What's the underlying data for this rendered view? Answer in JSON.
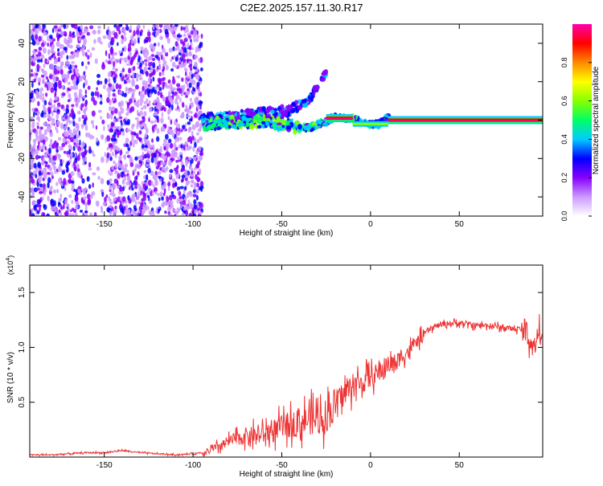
{
  "figure_title": "C2E2.2025.157.11.30.R17",
  "chart_data": [
    {
      "type": "heatmap",
      "xlabel": "Height of straight line (km)",
      "ylabel": "Frequency (Hz)",
      "xlim": [
        -192,
        97
      ],
      "ylim": [
        -50,
        50
      ],
      "x_ticks": [
        -150,
        -100,
        -50,
        0,
        50
      ],
      "y_ticks": [
        -40,
        -20,
        0,
        20,
        40
      ],
      "colorbar": {
        "label": "Normalized spectral amplitude",
        "range": [
          0,
          1
        ],
        "ticks": [
          0.0,
          0.2,
          0.4,
          0.6,
          0.8
        ],
        "colors": [
          "#ffffff",
          "#cc99ff",
          "#8800ff",
          "#0000ff",
          "#00ccff",
          "#00ff66",
          "#88ff00",
          "#ffff00",
          "#ff8800",
          "#ff0000",
          "#ff00aa"
        ]
      },
      "tracks": [
        {
          "segment": "noise",
          "x": [
            -192,
            -95
          ],
          "y": [
            -50,
            50
          ],
          "amplitude": 0.15
        },
        {
          "segment": "upper-branch",
          "x": [
            -95,
            -80,
            -60,
            -45,
            -35,
            -25
          ],
          "y": [
            0,
            1,
            3,
            5,
            10,
            25
          ],
          "amplitude": 0.3
        },
        {
          "segment": "main-branch",
          "x": [
            -95,
            -80,
            -60,
            -45,
            -35,
            -25,
            -20,
            -15,
            -10,
            -5,
            0,
            5,
            10
          ],
          "y": [
            -2,
            -1,
            -1,
            -3,
            -4,
            -1,
            2,
            1,
            1,
            -1,
            -2,
            -2,
            1
          ],
          "amplitude": 0.45
        },
        {
          "segment": "carrier",
          "x": [
            -25,
            -10
          ],
          "y": [
            1,
            1
          ],
          "amplitude": 0.95
        },
        {
          "segment": "carrier",
          "x": [
            10,
            97
          ],
          "y": [
            0,
            0
          ],
          "amplitude": 0.95
        }
      ]
    },
    {
      "type": "line",
      "xlabel": "Height of straight line (km)",
      "ylabel": "SNR (10 * v/v)",
      "y_multiplier": "(x10",
      "y_multiplier_exp": "4",
      "y_multiplier_close": ")",
      "xlim": [
        -192,
        97
      ],
      "ylim": [
        0,
        1.75
      ],
      "x_ticks": [
        -150,
        -100,
        -50,
        0,
        50
      ],
      "y_ticks": [
        0.5,
        1.0,
        1.5
      ],
      "y_tick_labels": [
        "0.5",
        "1.0",
        "1.5"
      ],
      "line_color": "#ee3333",
      "series": [
        {
          "x": [
            -192,
            -180,
            -170,
            -160,
            -150,
            -140,
            -130,
            -120,
            -110,
            -100,
            -95,
            -90,
            -85,
            -80,
            -75,
            -70,
            -65,
            -60,
            -55,
            -50,
            -45,
            -40,
            -35,
            -30,
            -25,
            -20,
            -15,
            -10,
            -5,
            0,
            5,
            10,
            15,
            20,
            25,
            30,
            35,
            40,
            45,
            50,
            55,
            60,
            65,
            70,
            75,
            80,
            85,
            88,
            90,
            92,
            94,
            97
          ],
          "y": [
            0.02,
            0.02,
            0.03,
            0.04,
            0.04,
            0.06,
            0.04,
            0.03,
            0.02,
            0.03,
            0.04,
            0.06,
            0.1,
            0.14,
            0.17,
            0.2,
            0.2,
            0.21,
            0.24,
            0.27,
            0.3,
            0.32,
            0.34,
            0.35,
            0.38,
            0.48,
            0.58,
            0.65,
            0.68,
            0.72,
            0.78,
            0.84,
            0.88,
            0.95,
            1.03,
            1.12,
            1.18,
            1.21,
            1.22,
            1.22,
            1.21,
            1.2,
            1.2,
            1.19,
            1.18,
            1.17,
            1.16,
            1.13,
            1.05,
            0.98,
            1.1,
            1.18
          ]
        }
      ]
    }
  ]
}
